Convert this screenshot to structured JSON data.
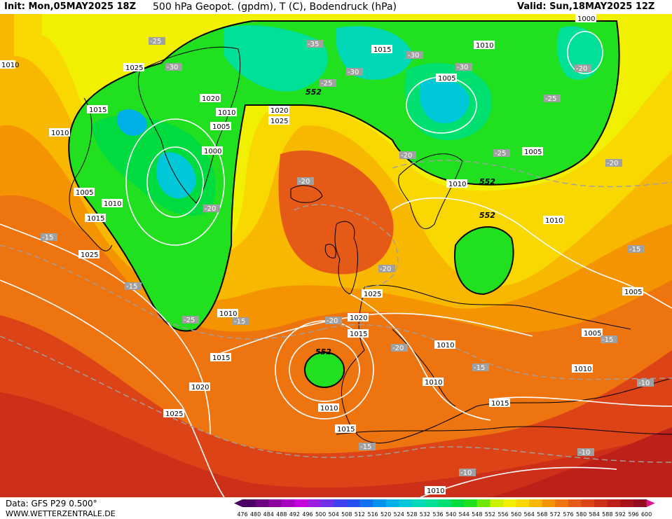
{
  "header": {
    "init": "Init: Mon,05MAY2025 18Z",
    "title": "500 hPa Geopot. (gpdm), T (C), Bodendruck (hPa)",
    "valid": "Valid: Sun,18MAY2025 12Z"
  },
  "footer": {
    "data_source": "Data: GFS P29 0.500°",
    "website": "WWW.WETTERZENTRALE.DE"
  },
  "legend": {
    "labels": [
      "476",
      "480",
      "484",
      "488",
      "492",
      "496",
      "500",
      "504",
      "508",
      "512",
      "516",
      "520",
      "524",
      "528",
      "532",
      "536",
      "540",
      "544",
      "548",
      "552",
      "556",
      "560",
      "564",
      "568",
      "572",
      "576",
      "580",
      "584",
      "588",
      "592",
      "596",
      "600"
    ],
    "colors": [
      "#4b0066",
      "#6e0082",
      "#8c00a0",
      "#a800c0",
      "#c400dc",
      "#9a20e0",
      "#7030e8",
      "#4040ee",
      "#2450f0",
      "#1070f0",
      "#0090ee",
      "#00b0e8",
      "#00c8d8",
      "#00d8b8",
      "#00e098",
      "#00e070",
      "#00dc40",
      "#20e020",
      "#70e800",
      "#c8f000",
      "#f0f000",
      "#f8d800",
      "#f8b800",
      "#f49400",
      "#ee7410",
      "#e65a18",
      "#dc4418",
      "#cc3018",
      "#bc2018",
      "#a81418",
      "#940c20",
      "#dc1488"
    ]
  },
  "map": {
    "isobar_labels": [
      "1000",
      "1025",
      "1010",
      "1015",
      "1010",
      "1020",
      "1010",
      "1015",
      "1005",
      "1000",
      "1020",
      "1025",
      "1010",
      "1005",
      "1005",
      "1010",
      "1015",
      "1025",
      "1010",
      "1025",
      "1020",
      "1015",
      "1010",
      "1010",
      "1015",
      "1020",
      "1025",
      "1005",
      "1010",
      "1015",
      "1010",
      "1005",
      "1010",
      "1005",
      "1015",
      "1010",
      "1010"
    ],
    "temp_labels": [
      "-25",
      "-35",
      "-30",
      "-30",
      "-30",
      "-25",
      "-30",
      "-25",
      "-20",
      "-20",
      "-20",
      "-25",
      "-20",
      "-20",
      "-15",
      "-15",
      "-25",
      "-15",
      "-20",
      "-20",
      "-20",
      "-15",
      "-15",
      "-15",
      "-10",
      "-15",
      "-10",
      "-10"
    ],
    "geopot_labels": [
      "552",
      "552",
      "552",
      "552"
    ]
  }
}
